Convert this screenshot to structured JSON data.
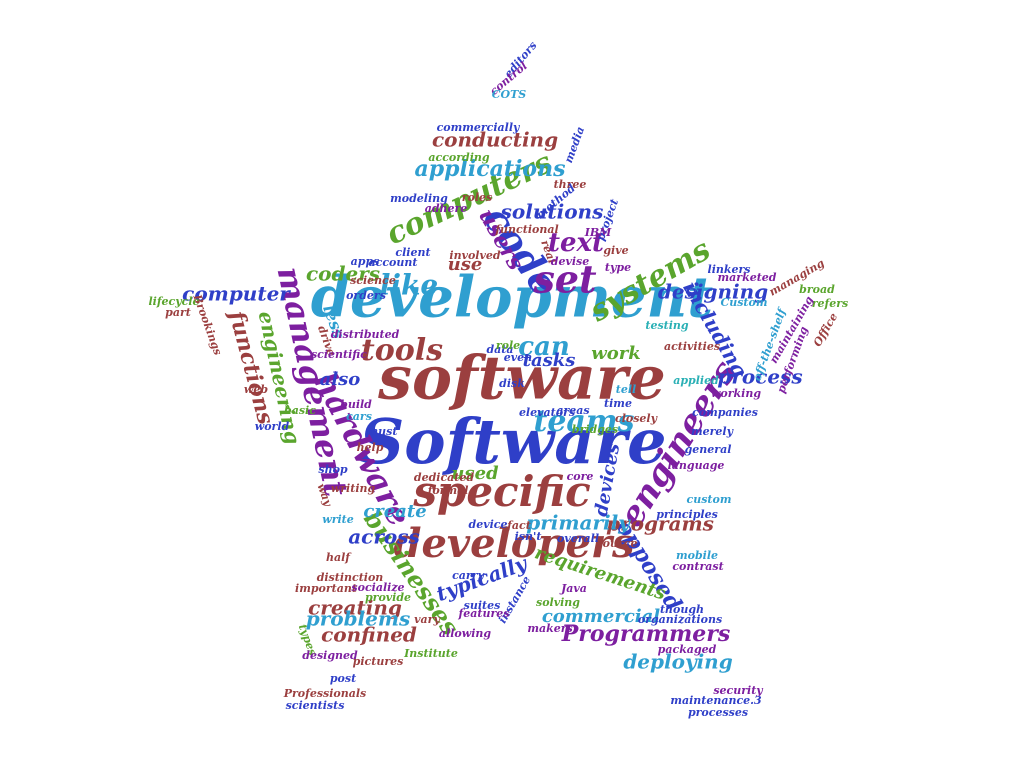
{
  "palette": {
    "maroon": "#9b3f3f",
    "sky": "#2f9fd0",
    "blue": "#2f3fc8",
    "green": "#5aa52d",
    "purple": "#7d1fa0",
    "teal": "#2ab0b5"
  },
  "words": [
    {
      "text": "software",
      "weight": 100,
      "color": "maroon"
    },
    {
      "text": "Software",
      "weight": 96,
      "color": "blue"
    },
    {
      "text": "development",
      "weight": 90,
      "color": "sky"
    },
    {
      "text": "developers",
      "weight": 70,
      "color": "maroon"
    },
    {
      "text": "specific",
      "weight": 62,
      "color": "maroon"
    },
    {
      "text": "management",
      "weight": 58,
      "color": "purple"
    },
    {
      "text": "engineers",
      "weight": 56,
      "color": "purple"
    },
    {
      "text": "hardware",
      "weight": 55,
      "color": "purple"
    },
    {
      "text": "code",
      "weight": 54,
      "color": "blue"
    },
    {
      "text": "set",
      "weight": 52,
      "color": "purple"
    },
    {
      "text": "computers",
      "weight": 46,
      "color": "green"
    },
    {
      "text": "teams",
      "weight": 44,
      "color": "sky"
    },
    {
      "text": "tools",
      "weight": 42,
      "color": "maroon"
    },
    {
      "text": "systems",
      "weight": 40,
      "color": "green"
    },
    {
      "text": "like",
      "weight": 38,
      "color": "sky"
    },
    {
      "text": "can",
      "weight": 36,
      "color": "sky"
    },
    {
      "text": "text",
      "weight": 34,
      "color": "purple"
    },
    {
      "text": "users",
      "weight": 33,
      "color": "purple"
    },
    {
      "text": "functions",
      "weight": 32,
      "color": "maroon"
    },
    {
      "text": "businesses",
      "weight": 32,
      "color": "green"
    },
    {
      "text": "Programmers",
      "weight": 31,
      "color": "purple"
    },
    {
      "text": "opposed",
      "weight": 31,
      "color": "blue"
    },
    {
      "text": "engineering",
      "weight": 30,
      "color": "green"
    },
    {
      "text": "including",
      "weight": 30,
      "color": "blue"
    },
    {
      "text": "designing",
      "weight": 30,
      "color": "blue"
    },
    {
      "text": "applications",
      "weight": 30,
      "color": "sky"
    },
    {
      "text": "computer",
      "weight": 30,
      "color": "blue"
    },
    {
      "text": "requirements",
      "weight": 29,
      "color": "green"
    },
    {
      "text": "process",
      "weight": 29,
      "color": "blue"
    },
    {
      "text": "deploying",
      "weight": 29,
      "color": "sky"
    },
    {
      "text": "commercial",
      "weight": 29,
      "color": "sky"
    },
    {
      "text": "typically",
      "weight": 29,
      "color": "blue"
    },
    {
      "text": "conducting",
      "weight": 28,
      "color": "maroon"
    },
    {
      "text": "solutions",
      "weight": 28,
      "color": "blue"
    },
    {
      "text": "coders",
      "weight": 28,
      "color": "green"
    },
    {
      "text": "across",
      "weight": 28,
      "color": "blue"
    },
    {
      "text": "confined",
      "weight": 28,
      "color": "maroon"
    },
    {
      "text": "creating",
      "weight": 28,
      "color": "maroon"
    },
    {
      "text": "problems",
      "weight": 28,
      "color": "sky"
    },
    {
      "text": "programs",
      "weight": 28,
      "color": "maroon"
    },
    {
      "text": "primarily",
      "weight": 28,
      "color": "sky"
    },
    {
      "text": "work",
      "weight": 27,
      "color": "green"
    },
    {
      "text": "create",
      "weight": 27,
      "color": "sky"
    },
    {
      "text": "devices",
      "weight": 27,
      "color": "blue"
    },
    {
      "text": "also",
      "weight": 27,
      "color": "blue"
    },
    {
      "text": "tasks",
      "weight": 27,
      "color": "blue"
    },
    {
      "text": "used",
      "weight": 26,
      "color": "green"
    },
    {
      "text": "use",
      "weight": 26,
      "color": "maroon"
    },
    {
      "text": "less",
      "weight": 26,
      "color": "sky"
    },
    {
      "text": "refers",
      "weight": 24,
      "color": "green"
    },
    {
      "text": "Office",
      "weight": 14,
      "color": "maroon"
    },
    {
      "text": "off-the-shelf",
      "weight": 14,
      "color": "sky"
    },
    {
      "text": "maintaining",
      "weight": 14,
      "color": "purple"
    },
    {
      "text": "performing",
      "weight": 14,
      "color": "purple"
    },
    {
      "text": "broad",
      "weight": 14,
      "color": "green"
    },
    {
      "text": "managing",
      "weight": 13,
      "color": "maroon"
    },
    {
      "text": "marketed",
      "weight": 13,
      "color": "purple"
    },
    {
      "text": "linkers",
      "weight": 13,
      "color": "blue"
    },
    {
      "text": "Custom",
      "weight": 13,
      "color": "sky"
    },
    {
      "text": "testing",
      "weight": 13,
      "color": "teal"
    },
    {
      "text": "activities",
      "weight": 13,
      "color": "maroon"
    },
    {
      "text": "applied",
      "weight": 13,
      "color": "teal"
    },
    {
      "text": "working",
      "weight": 13,
      "color": "purple"
    },
    {
      "text": "companies",
      "weight": 13,
      "color": "blue"
    },
    {
      "text": "merely",
      "weight": 13,
      "color": "blue"
    },
    {
      "text": "general",
      "weight": 13,
      "color": "blue"
    },
    {
      "text": "language",
      "weight": 13,
      "color": "purple"
    },
    {
      "text": "custom",
      "weight": 13,
      "color": "sky"
    },
    {
      "text": "principles",
      "weight": 13,
      "color": "blue"
    },
    {
      "text": "mobile",
      "weight": 13,
      "color": "sky"
    },
    {
      "text": "contrast",
      "weight": 13,
      "color": "purple"
    },
    {
      "text": "though",
      "weight": 13,
      "color": "blue"
    },
    {
      "text": "organizations",
      "weight": 13,
      "color": "blue"
    },
    {
      "text": "packaged",
      "weight": 13,
      "color": "purple"
    },
    {
      "text": "security",
      "weight": 13,
      "color": "purple"
    },
    {
      "text": "maintenance.3",
      "weight": 13,
      "color": "blue"
    },
    {
      "text": "processes",
      "weight": 13,
      "color": "blue"
    },
    {
      "text": "editors",
      "weight": 13,
      "color": "blue"
    },
    {
      "text": "control",
      "weight": 12,
      "color": "purple"
    },
    {
      "text": "COTS",
      "weight": 13,
      "color": "sky"
    },
    {
      "text": "commercially",
      "weight": 13,
      "color": "blue"
    },
    {
      "text": "media",
      "weight": 13,
      "color": "blue"
    },
    {
      "text": "according",
      "weight": 12,
      "color": "green"
    },
    {
      "text": "three",
      "weight": 13,
      "color": "maroon"
    },
    {
      "text": "modeling",
      "weight": 13,
      "color": "blue"
    },
    {
      "text": "roles",
      "weight": 13,
      "color": "maroon"
    },
    {
      "text": "method",
      "weight": 13,
      "color": "blue"
    },
    {
      "text": "adhere",
      "weight": 13,
      "color": "purple"
    },
    {
      "text": "project",
      "weight": 13,
      "color": "blue"
    },
    {
      "text": "IBM",
      "weight": 13,
      "color": "purple"
    },
    {
      "text": "give",
      "weight": 13,
      "color": "maroon"
    },
    {
      "text": "type",
      "weight": 13,
      "color": "purple"
    },
    {
      "text": "functional",
      "weight": 13,
      "color": "maroon"
    },
    {
      "text": "client",
      "weight": 13,
      "color": "blue"
    },
    {
      "text": "involved",
      "weight": 13,
      "color": "maroon"
    },
    {
      "text": "real",
      "weight": 13,
      "color": "maroon"
    },
    {
      "text": "devise",
      "weight": 12,
      "color": "purple"
    },
    {
      "text": "apps",
      "weight": 13,
      "color": "blue"
    },
    {
      "text": "account",
      "weight": 13,
      "color": "blue"
    },
    {
      "text": "science",
      "weight": 13,
      "color": "maroon"
    },
    {
      "text": "orders",
      "weight": 13,
      "color": "blue"
    },
    {
      "text": "lifecycle",
      "weight": 13,
      "color": "green"
    },
    {
      "text": "part",
      "weight": 13,
      "color": "maroon"
    },
    {
      "text": "Brookings",
      "weight": 13,
      "color": "maroon"
    },
    {
      "text": "distributed",
      "weight": 12,
      "color": "purple"
    },
    {
      "text": "drive",
      "weight": 13,
      "color": "maroon"
    },
    {
      "text": "scientific",
      "weight": 12,
      "color": "purple"
    },
    {
      "text": "data",
      "weight": 13,
      "color": "blue"
    },
    {
      "text": "role",
      "weight": 13,
      "color": "green"
    },
    {
      "text": "even",
      "weight": 13,
      "color": "blue"
    },
    {
      "text": "tell",
      "weight": 13,
      "color": "sky"
    },
    {
      "text": "web",
      "weight": 13,
      "color": "maroon"
    },
    {
      "text": "basic",
      "weight": 13,
      "color": "green"
    },
    {
      "text": "time",
      "weight": 13,
      "color": "blue"
    },
    {
      "text": "build",
      "weight": 13,
      "color": "purple"
    },
    {
      "text": "cars",
      "weight": 13,
      "color": "sky"
    },
    {
      "text": "elevators",
      "weight": 13,
      "color": "blue"
    },
    {
      "text": "areas",
      "weight": 13,
      "color": "blue"
    },
    {
      "text": "closely",
      "weight": 13,
      "color": "maroon"
    },
    {
      "text": "bridges",
      "weight": 13,
      "color": "green"
    },
    {
      "text": "must",
      "weight": 13,
      "color": "blue"
    },
    {
      "text": "world",
      "weight": 13,
      "color": "blue"
    },
    {
      "text": "help",
      "weight": 12,
      "color": "maroon"
    },
    {
      "text": "shop",
      "weight": 13,
      "color": "blue"
    },
    {
      "text": "writing",
      "weight": 13,
      "color": "maroon"
    },
    {
      "text": "dedicated",
      "weight": 13,
      "color": "maroon"
    },
    {
      "text": "formal",
      "weight": 13,
      "color": "maroon"
    },
    {
      "text": "core",
      "weight": 13,
      "color": "purple"
    },
    {
      "text": "way",
      "weight": 13,
      "color": "maroon"
    },
    {
      "text": "write",
      "weight": 12,
      "color": "sky"
    },
    {
      "text": "device",
      "weight": 13,
      "color": "blue"
    },
    {
      "text": "fact",
      "weight": 13,
      "color": "maroon"
    },
    {
      "text": "isn't",
      "weight": 13,
      "color": "blue"
    },
    {
      "text": "overall",
      "weight": 13,
      "color": "blue"
    },
    {
      "text": "source",
      "weight": 13,
      "color": "maroon"
    },
    {
      "text": "half",
      "weight": 13,
      "color": "maroon"
    },
    {
      "text": "distinction",
      "weight": 13,
      "color": "maroon"
    },
    {
      "text": "important",
      "weight": 13,
      "color": "maroon"
    },
    {
      "text": "socialize",
      "weight": 13,
      "color": "purple"
    },
    {
      "text": "carry",
      "weight": 13,
      "color": "blue"
    },
    {
      "text": "instance",
      "weight": 13,
      "color": "blue"
    },
    {
      "text": "solving",
      "weight": 12,
      "color": "green"
    },
    {
      "text": "Java",
      "weight": 13,
      "color": "purple"
    },
    {
      "text": "suites",
      "weight": 13,
      "color": "blue"
    },
    {
      "text": "features",
      "weight": 13,
      "color": "purple"
    },
    {
      "text": "makers",
      "weight": 13,
      "color": "purple"
    },
    {
      "text": "vary",
      "weight": 13,
      "color": "maroon"
    },
    {
      "text": "allowing",
      "weight": 13,
      "color": "purple"
    },
    {
      "text": "types",
      "weight": 13,
      "color": "green"
    },
    {
      "text": "designed",
      "weight": 12,
      "color": "purple"
    },
    {
      "text": "pictures",
      "weight": 13,
      "color": "maroon"
    },
    {
      "text": "Institute",
      "weight": 13,
      "color": "green"
    },
    {
      "text": "post",
      "weight": 13,
      "color": "blue"
    },
    {
      "text": "Professionals",
      "weight": 13,
      "color": "maroon"
    },
    {
      "text": "scientists",
      "weight": 13,
      "color": "blue"
    },
    {
      "text": "provide",
      "weight": 13,
      "color": "green"
    },
    {
      "text": "disk",
      "weight": 13,
      "color": "blue"
    }
  ]
}
